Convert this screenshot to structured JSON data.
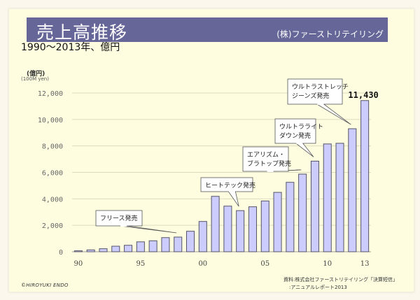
{
  "header": {
    "title": "売上高推移",
    "company": "(株)ファーストリテイリング"
  },
  "subtitle": "1990〜2013年、億円",
  "footer": {
    "credit": "©HIROYUKI ENDO",
    "source_line1": "資料:株式会社ファーストリテイリング「決算短信」",
    "source_line2": ":アニュアルレポート2013"
  },
  "colors": {
    "title_bar": "#666699",
    "bar_fill": "#ccccff",
    "bar_stroke": "#555566",
    "slide_bg": "#fefde0"
  },
  "chart_data": {
    "type": "bar",
    "title": "売上高推移",
    "xlabel": "",
    "ylabel": "(億円)",
    "ylabel_sub": "(100M yen)",
    "ylim": [
      0,
      12000
    ],
    "yticks": [
      0,
      2000,
      4000,
      6000,
      8000,
      10000,
      12000
    ],
    "ytick_labels": [
      "0",
      "2,000",
      "4,000",
      "6,000",
      "8,000",
      "10,000",
      "12,000"
    ],
    "grid": true,
    "categories": [
      "1990",
      "1991",
      "1992",
      "1993",
      "1994",
      "1995",
      "1996",
      "1997",
      "1998",
      "1999",
      "2000",
      "2001",
      "2002",
      "2003",
      "2004",
      "2005",
      "2006",
      "2007",
      "2008",
      "2009",
      "2010",
      "2011",
      "2012",
      "2013"
    ],
    "xtick_labels": [
      {
        "index": 0,
        "label": "90"
      },
      {
        "index": 5,
        "label": "95"
      },
      {
        "index": 10,
        "label": "00"
      },
      {
        "index": 15,
        "label": "05"
      },
      {
        "index": 20,
        "label": "10"
      },
      {
        "index": 23,
        "label": "13"
      }
    ],
    "values": [
      72,
      140,
      230,
      420,
      490,
      750,
      830,
      1070,
      1110,
      1550,
      2290,
      4190,
      3450,
      3110,
      3400,
      3840,
      4490,
      5250,
      5870,
      6850,
      8150,
      8200,
      9300,
      11430
    ],
    "data_labels": [
      {
        "index": 23,
        "label": "11,430"
      }
    ],
    "annotations": [
      {
        "text": [
          "フリース発売"
        ],
        "target_index": 8
      },
      {
        "text": [
          "ヒートテック発売"
        ],
        "target_index": 13
      },
      {
        "text": [
          "エアリズム・",
          "ブラトップ発売"
        ],
        "target_index": 18
      },
      {
        "text": [
          "ウルトラライト",
          "ダウン発売"
        ],
        "target_index": 19
      },
      {
        "text": [
          "ウルトラストレッチ",
          "ジーンズ発売"
        ],
        "target_index": 22
      }
    ]
  }
}
